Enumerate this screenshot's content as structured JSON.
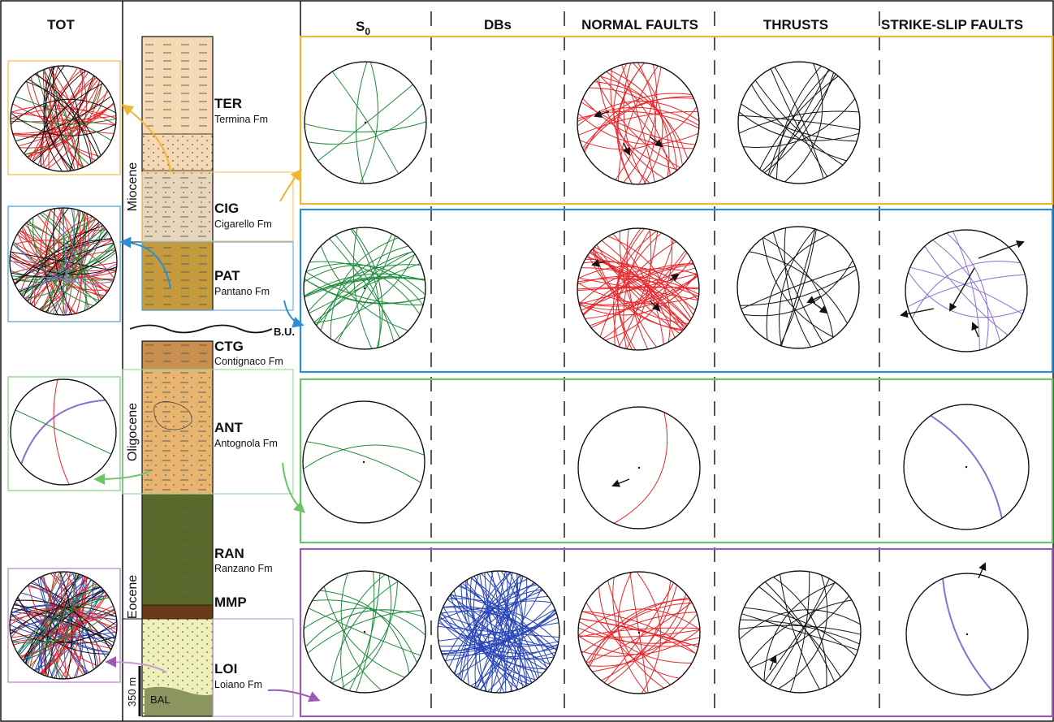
{
  "headers": {
    "tot": "TOT",
    "s0": "S",
    "s0_sub": "0",
    "dbs": "DBs",
    "normal": "NORMAL FAULTS",
    "thrusts": "THRUSTS",
    "strike_slip": "STRIKE-SLIP FAULTS"
  },
  "epochs": {
    "miocene": "Miocene",
    "oligocene": "Oligocene",
    "eocene": "Eocene"
  },
  "formations": [
    {
      "code": "TER",
      "name": "Termina Fm"
    },
    {
      "code": "CIG",
      "name": "Cigarello Fm"
    },
    {
      "code": "PAT",
      "name": "Pantano Fm"
    },
    {
      "code": "CTG",
      "name": "Contignaco Fm"
    },
    {
      "code": "ANT",
      "name": "Antognola Fm"
    },
    {
      "code": "RAN",
      "name": "Ranzano Fm"
    },
    {
      "code": "MMP",
      "name": ""
    },
    {
      "code": "LOI",
      "name": "Loiano Fm"
    },
    {
      "code": "BAL",
      "name": ""
    }
  ],
  "labels": {
    "unconformity": "B.U.",
    "scale": "350 m"
  },
  "colors": {
    "group_ter_cig": "#f0b534",
    "group_pat": "#2c8fd3",
    "group_ant": "#6cc46a",
    "group_loi": "#9a5cb4",
    "s0": "#1e8a3a",
    "dbs": "#2845b8",
    "normal": "#e8262a",
    "thrust": "#111111",
    "strike_slip": "#8a6fd0",
    "ter": "#f5d9b5",
    "cig": "#e8d6bb",
    "pat": "#c49a3c",
    "ctg": "#c98f4e",
    "ant": "#e8b570",
    "ran": "#5b6a2a",
    "mmp": "#6b3a18",
    "loi": "#eef0b8",
    "bal": "#8a9560"
  },
  "icons": [
    "stereonet-icon",
    "arrow-icon"
  ]
}
